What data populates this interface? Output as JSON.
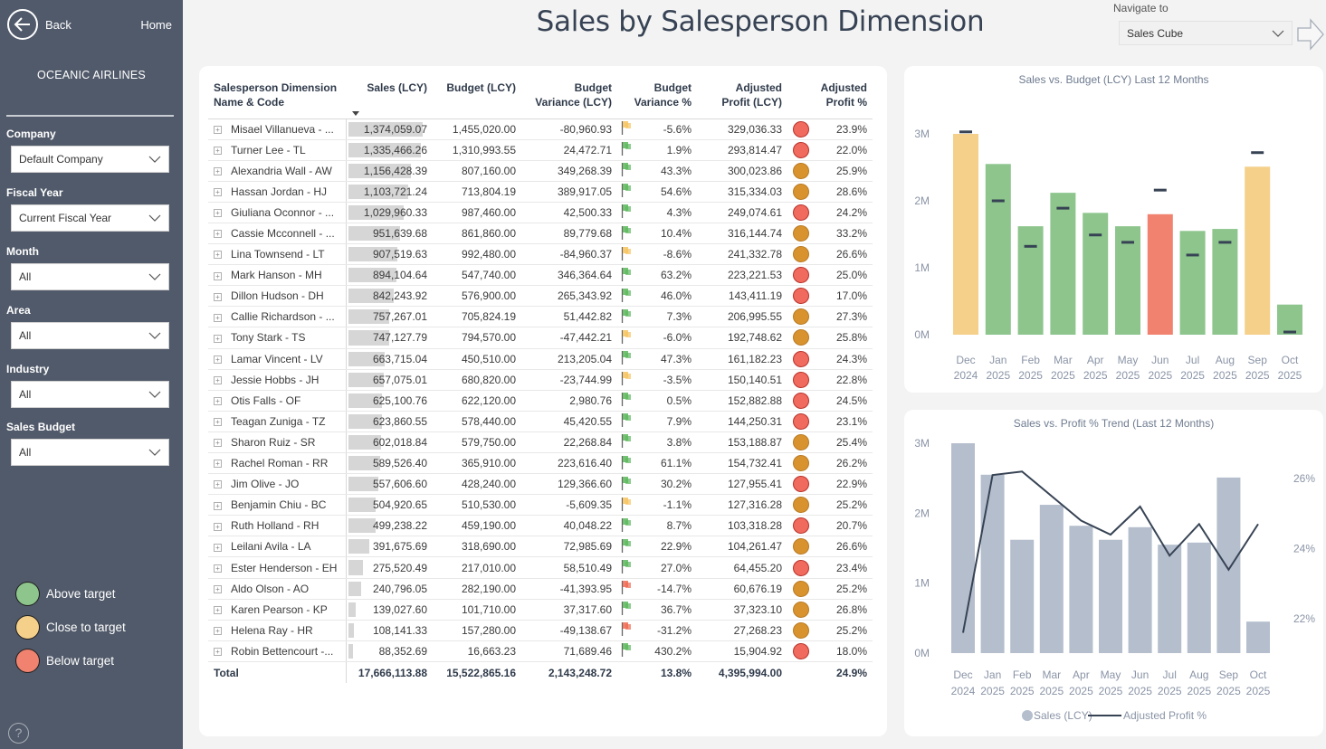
{
  "sidebar": {
    "back_label": "Back",
    "home_label": "Home",
    "brand": "OCEANIC AIRLINES",
    "filters": [
      {
        "label": "Company",
        "value": "Default Company"
      },
      {
        "label": "Fiscal Year",
        "value": "Current Fiscal Year"
      },
      {
        "label": "Month",
        "value": "All"
      },
      {
        "label": "Area",
        "value": "All"
      },
      {
        "label": "Industry",
        "value": "All"
      },
      {
        "label": "Sales Budget",
        "value": "All"
      }
    ],
    "legend": [
      {
        "label": "Above target",
        "color": "#8dc58d"
      },
      {
        "label": "Close to target",
        "color": "#f5d08a"
      },
      {
        "label": "Below target",
        "color": "#f0826f"
      }
    ],
    "help_label": "?"
  },
  "header": {
    "title": "Sales by Salesperson Dimension",
    "navigate_label": "Navigate to",
    "navigate_value": "Sales Cube"
  },
  "colors": {
    "flag_green": "#5cb85c",
    "flag_yellow": "#f7c35f",
    "flag_red": "#f06a52",
    "dot_red": "#f06a5e",
    "dot_orange": "#d9932e",
    "bar_green": "#8dc58d",
    "bar_yellow": "#f5d08a",
    "bar_red": "#f0826f",
    "budget_marker": "#374354",
    "bar_gray": "#b4becd",
    "line": "#374354",
    "sidebar_bg": "#515a6a"
  },
  "table": {
    "columns": [
      "Salesperson Dimension Name & Code",
      "Sales (LCY)",
      "Budget (LCY)",
      "Budget Variance (LCY)",
      "Budget Variance %",
      "Adjusted Profit (LCY)",
      "Adjusted Profit %"
    ],
    "column_lines": [
      [
        "Salesperson Dimension",
        "Name & Code"
      ],
      [
        "Sales (LCY)"
      ],
      [
        "Budget (LCY)"
      ],
      [
        "Budget",
        "Variance (LCY)"
      ],
      [
        "Budget",
        "Variance %"
      ],
      [
        "Adjusted",
        "Profit (LCY)"
      ],
      [
        "Adjusted",
        "Profit %"
      ]
    ],
    "sort_column": "Sales (LCY)",
    "sort_direction": "descending",
    "max_sales": 1374059.07,
    "rows": [
      {
        "name": "Misael Villanueva - ...",
        "sales": "1,374,059.07",
        "sales_num": 1374059.07,
        "budget": "1,455,020.00",
        "variance": "-80,960.93",
        "flag": "yellow",
        "variance_pct": "-5.6%",
        "profit": "329,036.33",
        "status": "red",
        "profit_pct": "23.9%"
      },
      {
        "name": "Turner Lee - TL",
        "sales": "1,335,466.26",
        "sales_num": 1335466.26,
        "budget": "1,310,993.55",
        "variance": "24,472.71",
        "flag": "green",
        "variance_pct": "1.9%",
        "profit": "293,814.47",
        "status": "red",
        "profit_pct": "22.0%"
      },
      {
        "name": "Alexandria Wall - AW",
        "sales": "1,156,428.39",
        "sales_num": 1156428.39,
        "budget": "807,160.00",
        "variance": "349,268.39",
        "flag": "green",
        "variance_pct": "43.3%",
        "profit": "300,023.86",
        "status": "orange",
        "profit_pct": "25.9%"
      },
      {
        "name": "Hassan Jordan - HJ",
        "sales": "1,103,721.24",
        "sales_num": 1103721.24,
        "budget": "713,804.19",
        "variance": "389,917.05",
        "flag": "green",
        "variance_pct": "54.6%",
        "profit": "315,334.03",
        "status": "orange",
        "profit_pct": "28.6%"
      },
      {
        "name": "Giuliana Oconnor - ...",
        "sales": "1,029,960.33",
        "sales_num": 1029960.33,
        "budget": "987,460.00",
        "variance": "42,500.33",
        "flag": "green",
        "variance_pct": "4.3%",
        "profit": "249,074.61",
        "status": "red",
        "profit_pct": "24.2%"
      },
      {
        "name": "Cassie Mcconnell - ...",
        "sales": "951,639.68",
        "sales_num": 951639.68,
        "budget": "861,860.00",
        "variance": "89,779.68",
        "flag": "green",
        "variance_pct": "10.4%",
        "profit": "316,144.74",
        "status": "orange",
        "profit_pct": "33.2%"
      },
      {
        "name": "Lina Townsend - LT",
        "sales": "907,519.63",
        "sales_num": 907519.63,
        "budget": "992,480.00",
        "variance": "-84,960.37",
        "flag": "yellow",
        "variance_pct": "-8.6%",
        "profit": "241,332.78",
        "status": "orange",
        "profit_pct": "26.6%"
      },
      {
        "name": "Mark Hanson - MH",
        "sales": "894,104.64",
        "sales_num": 894104.64,
        "budget": "547,740.00",
        "variance": "346,364.64",
        "flag": "green",
        "variance_pct": "63.2%",
        "profit": "223,221.53",
        "status": "red",
        "profit_pct": "25.0%"
      },
      {
        "name": "Dillon Hudson - DH",
        "sales": "842,243.92",
        "sales_num": 842243.92,
        "budget": "576,900.00",
        "variance": "265,343.92",
        "flag": "green",
        "variance_pct": "46.0%",
        "profit": "143,411.19",
        "status": "red",
        "profit_pct": "17.0%"
      },
      {
        "name": "Callie Richardson - ...",
        "sales": "757,267.01",
        "sales_num": 757267.01,
        "budget": "705,824.19",
        "variance": "51,442.82",
        "flag": "green",
        "variance_pct": "7.3%",
        "profit": "206,995.55",
        "status": "orange",
        "profit_pct": "27.3%"
      },
      {
        "name": "Tony Stark - TS",
        "sales": "747,127.79",
        "sales_num": 747127.79,
        "budget": "794,570.00",
        "variance": "-47,442.21",
        "flag": "yellow",
        "variance_pct": "-6.0%",
        "profit": "192,748.62",
        "status": "orange",
        "profit_pct": "25.8%"
      },
      {
        "name": "Lamar Vincent - LV",
        "sales": "663,715.04",
        "sales_num": 663715.04,
        "budget": "450,510.00",
        "variance": "213,205.04",
        "flag": "green",
        "variance_pct": "47.3%",
        "profit": "161,182.23",
        "status": "red",
        "profit_pct": "24.3%"
      },
      {
        "name": "Jessie Hobbs - JH",
        "sales": "657,075.01",
        "sales_num": 657075.01,
        "budget": "680,820.00",
        "variance": "-23,744.99",
        "flag": "yellow",
        "variance_pct": "-3.5%",
        "profit": "150,140.51",
        "status": "red",
        "profit_pct": "22.8%"
      },
      {
        "name": "Otis Falls - OF",
        "sales": "625,100.76",
        "sales_num": 625100.76,
        "budget": "622,120.00",
        "variance": "2,980.76",
        "flag": "green",
        "variance_pct": "0.5%",
        "profit": "152,882.88",
        "status": "red",
        "profit_pct": "24.5%"
      },
      {
        "name": "Teagan Zuniga - TZ",
        "sales": "623,860.55",
        "sales_num": 623860.55,
        "budget": "578,440.00",
        "variance": "45,420.55",
        "flag": "green",
        "variance_pct": "7.9%",
        "profit": "144,250.31",
        "status": "red",
        "profit_pct": "23.1%"
      },
      {
        "name": "Sharon Ruiz - SR",
        "sales": "602,018.84",
        "sales_num": 602018.84,
        "budget": "579,750.00",
        "variance": "22,268.84",
        "flag": "green",
        "variance_pct": "3.8%",
        "profit": "153,188.87",
        "status": "orange",
        "profit_pct": "25.4%"
      },
      {
        "name": "Rachel Roman - RR",
        "sales": "589,526.40",
        "sales_num": 589526.4,
        "budget": "365,910.00",
        "variance": "223,616.40",
        "flag": "green",
        "variance_pct": "61.1%",
        "profit": "154,732.41",
        "status": "orange",
        "profit_pct": "26.2%"
      },
      {
        "name": "Jim Olive - JO",
        "sales": "557,606.60",
        "sales_num": 557606.6,
        "budget": "428,240.00",
        "variance": "129,366.60",
        "flag": "green",
        "variance_pct": "30.2%",
        "profit": "127,955.41",
        "status": "red",
        "profit_pct": "22.9%"
      },
      {
        "name": "Benjamin Chiu - BC",
        "sales": "504,920.65",
        "sales_num": 504920.65,
        "budget": "510,530.00",
        "variance": "-5,609.35",
        "flag": "yellow",
        "variance_pct": "-1.1%",
        "profit": "127,316.28",
        "status": "orange",
        "profit_pct": "25.2%"
      },
      {
        "name": "Ruth Holland - RH",
        "sales": "499,238.22",
        "sales_num": 499238.22,
        "budget": "459,190.00",
        "variance": "40,048.22",
        "flag": "green",
        "variance_pct": "8.7%",
        "profit": "103,318.28",
        "status": "red",
        "profit_pct": "20.7%"
      },
      {
        "name": "Leilani Avila - LA",
        "sales": "391,675.69",
        "sales_num": 391675.69,
        "budget": "318,690.00",
        "variance": "72,985.69",
        "flag": "green",
        "variance_pct": "22.9%",
        "profit": "104,261.47",
        "status": "orange",
        "profit_pct": "26.6%"
      },
      {
        "name": "Ester Henderson - EH",
        "sales": "275,520.49",
        "sales_num": 275520.49,
        "budget": "217,010.00",
        "variance": "58,510.49",
        "flag": "green",
        "variance_pct": "27.0%",
        "profit": "64,455.20",
        "status": "red",
        "profit_pct": "23.4%"
      },
      {
        "name": "Aldo Olson - AO",
        "sales": "240,796.05",
        "sales_num": 240796.05,
        "budget": "282,190.00",
        "variance": "-41,393.95",
        "flag": "red",
        "variance_pct": "-14.7%",
        "profit": "60,676.19",
        "status": "orange",
        "profit_pct": "25.2%"
      },
      {
        "name": "Karen Pearson - KP",
        "sales": "139,027.60",
        "sales_num": 139027.6,
        "budget": "101,710.00",
        "variance": "37,317.60",
        "flag": "green",
        "variance_pct": "36.7%",
        "profit": "37,323.10",
        "status": "orange",
        "profit_pct": "26.8%"
      },
      {
        "name": "Helena Ray - HR",
        "sales": "108,141.33",
        "sales_num": 108141.33,
        "budget": "157,280.00",
        "variance": "-49,138.67",
        "flag": "red",
        "variance_pct": "-31.2%",
        "profit": "27,268.23",
        "status": "orange",
        "profit_pct": "25.2%"
      },
      {
        "name": "Robin Bettencourt -...",
        "sales": "88,352.69",
        "sales_num": 88352.69,
        "budget": "16,663.23",
        "variance": "71,689.46",
        "flag": "green",
        "variance_pct": "430.2%",
        "profit": "15,904.92",
        "status": "red",
        "profit_pct": "18.0%"
      }
    ],
    "total": {
      "label": "Total",
      "sales": "17,666,113.88",
      "budget": "15,522,865.16",
      "variance": "2,143,248.72",
      "variance_pct": "13.8%",
      "profit": "4,395,994.00",
      "profit_pct": "24.9%"
    }
  },
  "chart_data": [
    {
      "type": "bar",
      "title": "Sales vs. Budget (LCY) Last 12 Months",
      "categories": [
        "Dec 2024",
        "Jan 2025",
        "Feb 2025",
        "Mar 2025",
        "Apr 2025",
        "May 2025",
        "Jun 2025",
        "Jul 2025",
        "Aug 2025",
        "Sep 2025",
        "Oct 2025"
      ],
      "category_lines": [
        [
          "Dec",
          "2024"
        ],
        [
          "Jan",
          "2025"
        ],
        [
          "Feb",
          "2025"
        ],
        [
          "Mar",
          "2025"
        ],
        [
          "Apr",
          "2025"
        ],
        [
          "May",
          "2025"
        ],
        [
          "Jun",
          "2025"
        ],
        [
          "Jul",
          "2025"
        ],
        [
          "Aug",
          "2025"
        ],
        [
          "Sep",
          "2025"
        ],
        [
          "Oct",
          "2025"
        ]
      ],
      "series": [
        {
          "name": "Sales (LCY)",
          "values": [
            3000000,
            2550000,
            1620000,
            2120000,
            1820000,
            1620000,
            1800000,
            1550000,
            1580000,
            2510000,
            450000
          ]
        },
        {
          "name": "Budget (LCY)",
          "marker": "line",
          "values": [
            3030000,
            2000000,
            1320000,
            1890000,
            1490000,
            1380000,
            2160000,
            1190000,
            1380000,
            2720000,
            40000
          ]
        }
      ],
      "bar_status": [
        "yellow",
        "green",
        "green",
        "green",
        "green",
        "green",
        "red",
        "green",
        "green",
        "yellow",
        "green"
      ],
      "yticks": [
        "0M",
        "1M",
        "2M",
        "3M"
      ],
      "ylim": [
        0,
        3000000
      ],
      "xlabel": "",
      "ylabel": "",
      "grid": false,
      "legend": "none"
    },
    {
      "type": "bar",
      "combo": "bar+line",
      "title": "Sales vs. Profit % Trend (Last 12 Months)",
      "categories": [
        "Dec 2024",
        "Jan 2025",
        "Feb 2025",
        "Mar 2025",
        "Apr 2025",
        "May 2025",
        "Jun 2025",
        "Jul 2025",
        "Aug 2025",
        "Sep 2025",
        "Oct 2025"
      ],
      "category_lines": [
        [
          "Dec",
          "2024"
        ],
        [
          "Jan",
          "2025"
        ],
        [
          "Feb",
          "2025"
        ],
        [
          "Mar",
          "2025"
        ],
        [
          "Apr",
          "2025"
        ],
        [
          "May",
          "2025"
        ],
        [
          "Jun",
          "2025"
        ],
        [
          "Jul",
          "2025"
        ],
        [
          "Aug",
          "2025"
        ],
        [
          "Sep",
          "2025"
        ],
        [
          "Oct",
          "2025"
        ]
      ],
      "series": [
        {
          "name": "Sales (LCY)",
          "type": "bar",
          "axis": "left",
          "values": [
            3000000,
            2550000,
            1620000,
            2120000,
            1820000,
            1620000,
            1800000,
            1550000,
            1580000,
            2510000,
            450000
          ]
        },
        {
          "name": "Adjusted Profit %",
          "type": "line",
          "axis": "right",
          "values": [
            21.6,
            26.1,
            26.2,
            25.5,
            24.8,
            24.4,
            25.2,
            23.8,
            24.7,
            23.4,
            24.7
          ]
        }
      ],
      "yticks_left": [
        "0M",
        "1M",
        "2M",
        "3M"
      ],
      "ylim_left": [
        0,
        3000000
      ],
      "yticks_right": [
        "22%",
        "24%",
        "26%"
      ],
      "ytick_values_right": [
        22,
        24,
        26
      ],
      "ylim_right": [
        20.1,
        28.0
      ],
      "legend": "bottom",
      "legend_entries": [
        "Sales (LCY)",
        "Adjusted Profit %"
      ],
      "grid": false
    }
  ]
}
